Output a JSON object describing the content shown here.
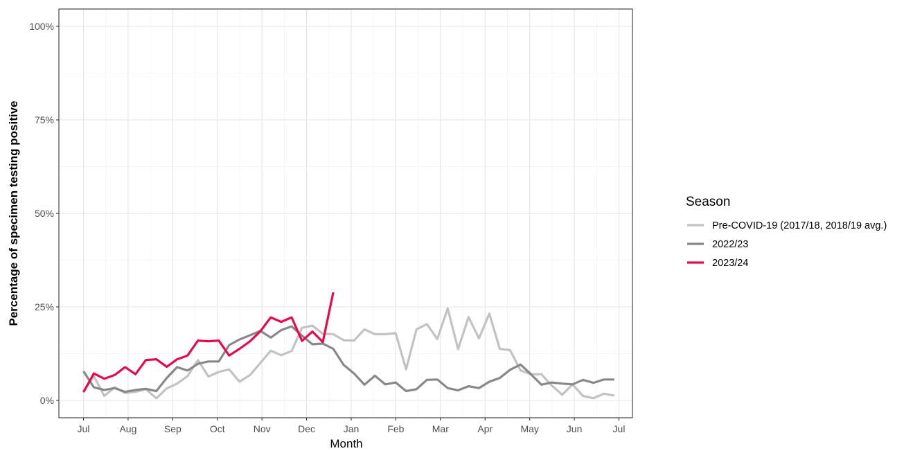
{
  "chart_data": {
    "type": "line",
    "title": "",
    "xlabel": "Month",
    "ylabel": "Percentage of specimen testing positive",
    "ylim": [
      0,
      100
    ],
    "y_ticks": [
      "0%",
      "25%",
      "50%",
      "75%",
      "100%"
    ],
    "y_tick_values": [
      0,
      25,
      50,
      75,
      100
    ],
    "x_ticks": [
      "Jul",
      "Aug",
      "Sep",
      "Oct",
      "Nov",
      "Dec",
      "Jan",
      "Feb",
      "Mar",
      "Apr",
      "May",
      "Jun",
      "Jul"
    ],
    "x_unit": "week index from start of July",
    "grid": true,
    "legend": {
      "title": "Season",
      "position": "right"
    },
    "series": [
      {
        "name": "Pre-COVID-19 (2017/18, 2018/19 avg.)",
        "color": "#c2c2c2",
        "x": [
          0,
          1,
          2,
          3,
          4,
          5,
          6,
          7,
          8,
          9,
          10,
          11,
          12,
          13,
          14,
          15,
          16,
          17,
          18,
          19,
          20,
          21,
          22,
          23,
          24,
          25,
          26,
          27,
          28,
          29,
          30,
          31,
          32,
          33,
          34,
          35,
          36,
          37,
          38,
          39,
          40,
          41,
          42,
          43,
          44,
          45,
          46,
          47,
          48,
          49,
          50,
          51
        ],
        "values": [
          2.5,
          6.5,
          1.2,
          3.5,
          2.0,
          2.3,
          3.0,
          0.6,
          3.2,
          4.5,
          6.5,
          10.8,
          6.4,
          7.6,
          8.3,
          5.0,
          6.8,
          10.0,
          13.3,
          12.1,
          13.2,
          19.4,
          20.0,
          17.8,
          17.7,
          16.1,
          16.0,
          19.0,
          17.7,
          17.7,
          18.0,
          8.3,
          19.0,
          20.4,
          16.4,
          24.6,
          13.7,
          22.3,
          16.6,
          23.2,
          13.8,
          13.4,
          8.0,
          7.0,
          7.0,
          4.0,
          1.5,
          4.3,
          1.2,
          0.6,
          1.8,
          1.3
        ]
      },
      {
        "name": "2022/23",
        "color": "#888888",
        "x": [
          0,
          1,
          2,
          3,
          4,
          5,
          6,
          7,
          8,
          9,
          10,
          11,
          12,
          13,
          14,
          15,
          16,
          17,
          18,
          19,
          20,
          21,
          22,
          23,
          24,
          25,
          26,
          27,
          28,
          29,
          30,
          31,
          32,
          33,
          34,
          35,
          36,
          37,
          38,
          39,
          40,
          41,
          42,
          43,
          44,
          45,
          46,
          47,
          48,
          49,
          50,
          51
        ],
        "values": [
          7.8,
          3.5,
          2.8,
          3.3,
          2.3,
          2.8,
          3.1,
          2.5,
          6.0,
          8.9,
          8.0,
          9.8,
          10.4,
          10.4,
          14.8,
          16.3,
          17.4,
          18.6,
          16.8,
          18.8,
          19.8,
          17.3,
          15.0,
          15.2,
          13.8,
          9.5,
          7.2,
          4.2,
          6.6,
          4.3,
          4.8,
          2.5,
          3.0,
          5.5,
          5.6,
          3.3,
          2.7,
          3.8,
          3.3,
          5.0,
          6.0,
          8.2,
          9.6,
          7.0,
          4.2,
          4.8,
          4.5,
          4.3,
          5.5,
          4.7,
          5.6,
          5.6
        ]
      },
      {
        "name": "2023/24",
        "color": "#e8094d",
        "x": [
          0,
          1,
          2,
          3,
          4,
          5,
          6,
          7,
          8,
          9,
          10,
          11,
          12,
          13,
          14,
          15,
          16,
          17,
          18,
          19,
          20,
          21,
          22,
          23,
          24
        ],
        "values": [
          2.2,
          7.2,
          5.8,
          6.8,
          8.9,
          7.0,
          10.8,
          11.0,
          9.0,
          11.0,
          12.0,
          16.0,
          15.8,
          16.0,
          12.0,
          13.8,
          15.8,
          18.5,
          22.2,
          21.0,
          22.2,
          15.9,
          18.4,
          15.6,
          28.9
        ]
      }
    ]
  }
}
